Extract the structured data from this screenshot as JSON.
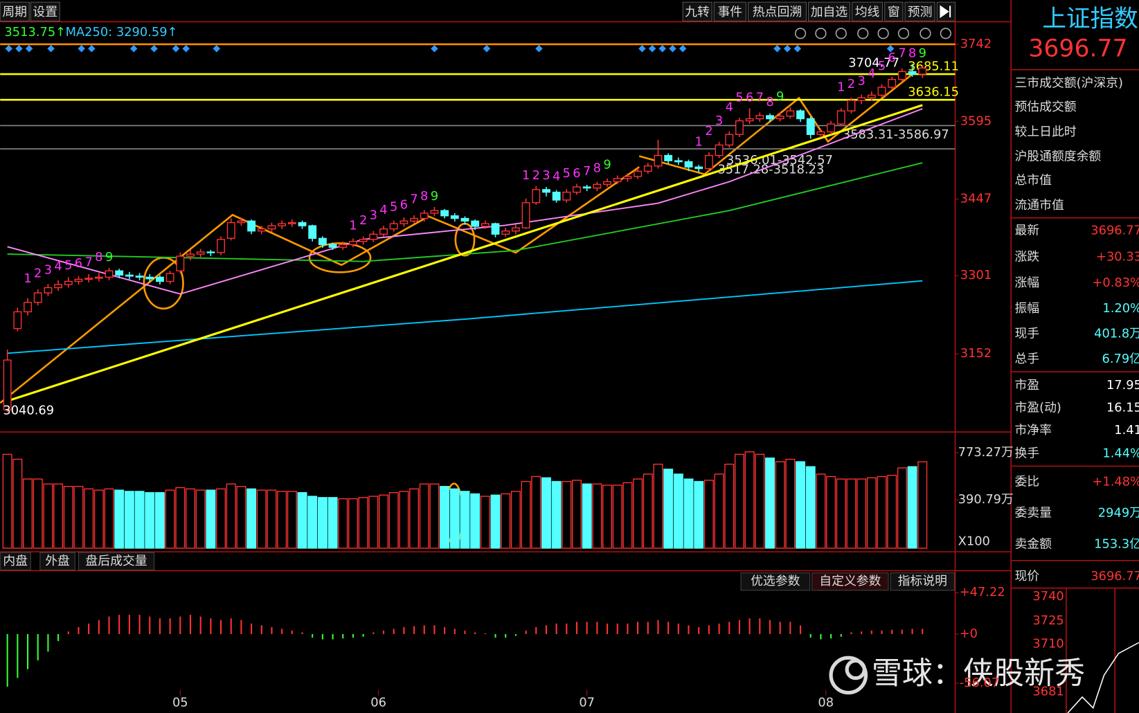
{
  "toolbar": {
    "left": [
      "周期",
      "设置"
    ],
    "right": [
      "九转",
      "事件",
      "热点回溯",
      "加自选",
      "均线",
      "窗",
      "预测"
    ]
  },
  "chart_data": {
    "type": "candlestick",
    "legend_texts": [
      "3513.75↑",
      "MA250: 3290.59↑"
    ],
    "ylim": [
      3007,
      3771
    ],
    "yticks": [
      3742,
      3595,
      3447,
      3301,
      3152
    ],
    "xticks": [
      {
        "value": 17,
        "label": "05"
      },
      {
        "value": 36.5,
        "label": "06"
      },
      {
        "value": 57,
        "label": "07"
      },
      {
        "value": 80.5,
        "label": "08"
      }
    ],
    "up_color": "#ff3333",
    "down_color": "#54ffff",
    "candles": [
      [
        3045,
        3160,
        3040.69,
        3140
      ],
      [
        3200,
        3240,
        3195,
        3232
      ],
      [
        3232,
        3258,
        3225,
        3250
      ],
      [
        3250,
        3275,
        3244,
        3268
      ],
      [
        3268,
        3285,
        3262,
        3278
      ],
      [
        3278,
        3292,
        3272,
        3284
      ],
      [
        3284,
        3298,
        3278,
        3290
      ],
      [
        3290,
        3300,
        3284,
        3294
      ],
      [
        3294,
        3304,
        3288,
        3296
      ],
      [
        3296,
        3306,
        3290,
        3298
      ],
      [
        3298,
        3316,
        3292,
        3310
      ],
      [
        3310,
        3314,
        3296,
        3302
      ],
      [
        3302,
        3308,
        3294,
        3300
      ],
      [
        3300,
        3306,
        3292,
        3298
      ],
      [
        3298,
        3304,
        3289,
        3295
      ],
      [
        3298,
        3302,
        3284,
        3290
      ],
      [
        3290,
        3310,
        3285,
        3305
      ],
      [
        3310,
        3345,
        3305,
        3338
      ],
      [
        3338,
        3350,
        3330,
        3342
      ],
      [
        3342,
        3352,
        3336,
        3346
      ],
      [
        3346,
        3350,
        3338,
        3345
      ],
      [
        3345,
        3376,
        3340,
        3370
      ],
      [
        3372,
        3410,
        3368,
        3402
      ],
      [
        3402,
        3412,
        3396,
        3405
      ],
      [
        3405,
        3408,
        3380,
        3386
      ],
      [
        3386,
        3396,
        3380,
        3390
      ],
      [
        3390,
        3402,
        3384,
        3396
      ],
      [
        3396,
        3406,
        3390,
        3400
      ],
      [
        3400,
        3408,
        3394,
        3402
      ],
      [
        3402,
        3406,
        3390,
        3396
      ],
      [
        3396,
        3398,
        3366,
        3372
      ],
      [
        3372,
        3376,
        3354,
        3360
      ],
      [
        3360,
        3364,
        3350,
        3355
      ],
      [
        3355,
        3366,
        3350,
        3360
      ],
      [
        3360,
        3372,
        3355,
        3366
      ],
      [
        3366,
        3376,
        3360,
        3370
      ],
      [
        3370,
        3386,
        3365,
        3380
      ],
      [
        3380,
        3396,
        3375,
        3390
      ],
      [
        3390,
        3406,
        3385,
        3400
      ],
      [
        3400,
        3412,
        3394,
        3405
      ],
      [
        3405,
        3416,
        3400,
        3410
      ],
      [
        3410,
        3426,
        3404,
        3420
      ],
      [
        3420,
        3432,
        3414,
        3425
      ],
      [
        3425,
        3428,
        3410,
        3415
      ],
      [
        3415,
        3420,
        3404,
        3410
      ],
      [
        3410,
        3414,
        3398,
        3405
      ],
      [
        3405,
        3408,
        3388,
        3395
      ],
      [
        3395,
        3406,
        3390,
        3400
      ],
      [
        3400,
        3402,
        3374,
        3380
      ],
      [
        3380,
        3392,
        3375,
        3386
      ],
      [
        3386,
        3398,
        3380,
        3392
      ],
      [
        3392,
        3448,
        3390,
        3440
      ],
      [
        3440,
        3472,
        3436,
        3465
      ],
      [
        3465,
        3470,
        3452,
        3460
      ],
      [
        3460,
        3464,
        3440,
        3445
      ],
      [
        3445,
        3466,
        3440,
        3460
      ],
      [
        3460,
        3476,
        3455,
        3470
      ],
      [
        3470,
        3474,
        3462,
        3468
      ],
      [
        3468,
        3480,
        3462,
        3475
      ],
      [
        3475,
        3486,
        3470,
        3480
      ],
      [
        3480,
        3492,
        3475,
        3486
      ],
      [
        3486,
        3496,
        3480,
        3490
      ],
      [
        3490,
        3506,
        3485,
        3500
      ],
      [
        3500,
        3516,
        3495,
        3510
      ],
      [
        3510,
        3560,
        3505,
        3530
      ],
      [
        3530,
        3534,
        3514,
        3520
      ],
      [
        3520,
        3526,
        3512,
        3518
      ],
      [
        3518,
        3522,
        3500,
        3508
      ],
      [
        3508,
        3512,
        3498,
        3505
      ],
      [
        3505,
        3536,
        3500,
        3530
      ],
      [
        3530,
        3556,
        3525,
        3550
      ],
      [
        3550,
        3576,
        3545,
        3570
      ],
      [
        3570,
        3602,
        3565,
        3596
      ],
      [
        3596,
        3620,
        3590,
        3600
      ],
      [
        3600,
        3612,
        3594,
        3606
      ],
      [
        3606,
        3610,
        3594,
        3600
      ],
      [
        3600,
        3612,
        3595,
        3605
      ],
      [
        3605,
        3622,
        3600,
        3615
      ],
      [
        3615,
        3618,
        3594,
        3600
      ],
      [
        3600,
        3604,
        3562,
        3570
      ],
      [
        3570,
        3580,
        3564,
        3575
      ],
      [
        3575,
        3596,
        3570,
        3590
      ],
      [
        3590,
        3620,
        3586,
        3615
      ],
      [
        3615,
        3640,
        3610,
        3635
      ],
      [
        3635,
        3646,
        3628,
        3640
      ],
      [
        3640,
        3652,
        3634,
        3645
      ],
      [
        3645,
        3666,
        3640,
        3660
      ],
      [
        3660,
        3680,
        3655,
        3675
      ],
      [
        3675,
        3696,
        3670,
        3690
      ],
      [
        3690,
        3704.77,
        3680,
        3685
      ],
      [
        3685,
        3702,
        3678,
        3696.77
      ]
    ],
    "lines": [
      {
        "color": "#00c8ff",
        "x": [
          0,
          45,
          90
        ],
        "values": [
          3153,
          3218,
          3291
        ]
      },
      {
        "color": "#22cc22",
        "x": [
          0,
          35,
          50,
          71,
          90
        ],
        "values": [
          3342,
          3328,
          3349,
          3425,
          3516
        ]
      },
      {
        "color": "#ff88ff",
        "x": [
          0,
          17,
          35,
          49,
          64,
          71,
          90
        ],
        "values": [
          3356,
          3266,
          3370,
          3397,
          3439,
          3480,
          3619
        ]
      }
    ],
    "trendlines": [
      {
        "color": "#ffff00",
        "x": [
          0,
          90
        ],
        "values": [
          3062,
          3626
        ]
      }
    ],
    "levels": [
      {
        "value": 3742,
        "color": "#ff8c00"
      },
      {
        "value": 3685.11,
        "color": "#ffff00"
      },
      {
        "value": 3636.15,
        "color": "#ffff00"
      },
      {
        "value": 3586.97,
        "color": "#888888"
      },
      {
        "value": 3542.57,
        "color": "#888888"
      }
    ],
    "annotations": [
      "3583.31-3586.97",
      "3536.01-3542.57",
      "3517.28-3518.23"
    ],
    "td_setups": [
      {
        "start": 2,
        "counts": [
          1,
          2,
          3,
          4,
          5,
          6,
          7,
          8,
          9
        ]
      },
      {
        "start": 34,
        "counts": [
          1,
          2,
          3,
          4,
          5,
          6,
          7,
          8,
          9
        ]
      },
      {
        "start": 51,
        "counts": [
          1,
          2,
          3,
          4,
          5,
          6,
          7,
          8,
          9
        ]
      },
      {
        "start": 68,
        "counts": [
          1,
          2,
          3,
          4,
          5,
          6,
          7,
          8,
          9
        ]
      },
      {
        "start": 82,
        "counts": [
          1,
          2,
          3,
          4,
          5,
          6,
          7,
          8,
          9
        ]
      }
    ],
    "volume": {
      "ylim": [
        0,
        923
      ],
      "yticks": [
        {
          "value": 773.27,
          "label": "773.27万"
        },
        {
          "value": 390.79,
          "label": "390.79万"
        }
      ],
      "unit_label": "X100",
      "values": [
        760,
        720,
        560,
        560,
        520,
        520,
        500,
        500,
        480,
        470,
        480,
        470,
        460,
        460,
        450,
        450,
        470,
        490,
        480,
        470,
        470,
        480,
        520,
        500,
        480,
        470,
        470,
        460,
        460,
        450,
        420,
        410,
        410,
        400,
        400,
        410,
        420,
        430,
        450,
        460,
        480,
        520,
        520,
        500,
        480,
        460,
        440,
        420,
        430,
        440,
        460,
        540,
        580,
        570,
        540,
        540,
        550,
        520,
        520,
        510,
        510,
        530,
        560,
        600,
        680,
        640,
        600,
        560,
        540,
        550,
        600,
        680,
        760,
        780,
        760,
        730,
        700,
        720,
        700,
        660,
        600,
        580,
        560,
        560,
        560,
        570,
        580,
        590,
        650,
        660,
        700
      ]
    },
    "macd": {
      "ylim": [
        -90,
        69
      ],
      "yticks": [
        {
          "value": 47.22,
          "label": "+47.22"
        },
        {
          "value": 0,
          "label": "+0"
        },
        {
          "value": -56.07,
          "label": "-56.07"
        }
      ],
      "values": [
        -60,
        -50,
        -40,
        -30,
        -20,
        -8,
        3,
        8,
        12,
        16,
        20,
        22,
        22,
        22,
        20,
        18,
        18,
        20,
        22,
        20,
        18,
        16,
        18,
        16,
        12,
        10,
        8,
        6,
        4,
        2,
        -4,
        -6,
        -6,
        -5,
        -4,
        -3,
        2,
        4,
        6,
        8,
        9,
        10,
        10,
        8,
        6,
        4,
        2,
        1,
        -4,
        -4,
        -2,
        4,
        8,
        10,
        12,
        12,
        14,
        14,
        14,
        12,
        12,
        12,
        14,
        14,
        16,
        14,
        12,
        10,
        8,
        10,
        12,
        14,
        16,
        18,
        18,
        16,
        14,
        14,
        10,
        -4,
        -6,
        -5,
        -3,
        2,
        3,
        4,
        4,
        5,
        5,
        6,
        6
      ]
    }
  },
  "tabs": {
    "volume": [
      "内盘",
      "外盘",
      "盘后成交量"
    ],
    "macd": [
      "优选参数",
      "自定义参数",
      "指标说明"
    ]
  },
  "quote": {
    "name": "上证指数",
    "price": "3696.77",
    "headers": [
      "三市成交额(沪深京)",
      "预估成交额",
      "较上日此时",
      "沪股通额度余额",
      "总市值",
      "流通市值"
    ],
    "fields": [
      {
        "label": "最新",
        "value": "3696.77",
        "color": "#ff3333"
      },
      {
        "label": "涨跌",
        "value": "+30.33",
        "color": "#ff3333"
      },
      {
        "label": "涨幅",
        "value": "+0.83%",
        "color": "#ff3333"
      },
      {
        "label": "振幅",
        "value": "1.20%",
        "color": "#54ffff"
      },
      {
        "label": "现手",
        "value": "401.8万",
        "color": "#54ffff"
      },
      {
        "label": "总手",
        "value": "6.79亿",
        "color": "#54ffff"
      },
      {
        "label": "市盈",
        "value": "17.95",
        "color": "#ffffff"
      },
      {
        "label": "市盈(动)",
        "value": "16.15",
        "color": "#ffffff"
      },
      {
        "label": "市净率",
        "value": "1.41",
        "color": "#ffffff"
      },
      {
        "label": "换手",
        "value": "1.44%",
        "color": "#54ffff"
      },
      {
        "label": "委比",
        "value": "+1.48%",
        "color": "#ff3333"
      },
      {
        "label": "委卖量",
        "value": "2949万",
        "color": "#54ffff"
      },
      {
        "label": "卖金额",
        "value": "153.3亿",
        "color": "#54ffff"
      },
      {
        "label": "现价",
        "value": "3696.77",
        "color": "#ff3333"
      }
    ],
    "mini_ticks": [
      3740,
      3725,
      3710,
      3681
    ]
  },
  "watermark": "雪球：侠股新秀"
}
